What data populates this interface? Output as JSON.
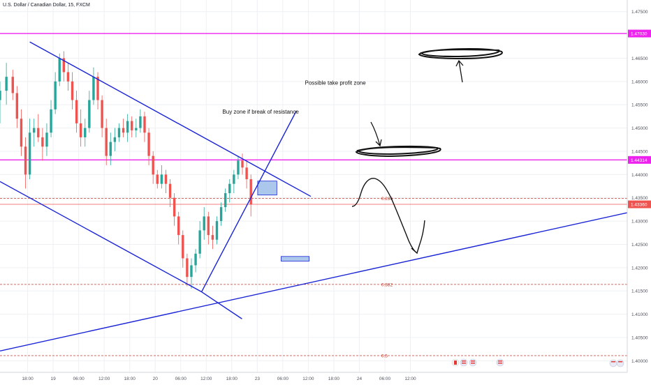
{
  "header": {
    "symbol_title": "U.S. Dollar / Canadian Dollar, 15, FXCM"
  },
  "colors": {
    "background": "#ffffff",
    "grid": "#eef0f3",
    "candle_up": "#26a69a",
    "candle_down": "#ef5350",
    "trendline": "#1a24d6",
    "level": "#ee22ee",
    "fib": "#c0392b",
    "price_line": "#ef5350",
    "zone_fill": "#8fb5e6",
    "zone_stroke": "#1a24d6",
    "axis_text": "#50535e",
    "annotation_ink": "#111111"
  },
  "chart_data": {
    "type": "candlestick",
    "y_axis": {
      "range": [
        1.3975,
        1.4775
      ],
      "tick_labels": [
        "1.47500",
        "1.46500",
        "1.46000",
        "1.45500",
        "1.45000",
        "1.44500",
        "1.44000",
        "1.43500",
        "1.43000",
        "1.42500",
        "1.42000",
        "1.41500",
        "1.41000",
        "1.40500",
        "1.40000"
      ],
      "tick_values": [
        1.475,
        1.465,
        1.46,
        1.455,
        1.45,
        1.445,
        1.44,
        1.435,
        1.43,
        1.425,
        1.42,
        1.415,
        1.41,
        1.405,
        1.4
      ]
    },
    "x_axis": {
      "range_hours": [
        -6.5,
        141
      ],
      "tick_labels": [
        "18:00",
        "19",
        "06:00",
        "12:00",
        "18:00",
        "20",
        "06:00",
        "12:00",
        "18:00",
        "23",
        "06:00",
        "12:00",
        "18:00",
        "24",
        "06:00",
        "12:00"
      ],
      "tick_hours": [
        0,
        6,
        12,
        18,
        24,
        30,
        36,
        42,
        48,
        54,
        60,
        66,
        72,
        78,
        84,
        90
      ]
    },
    "price_badges": [
      {
        "label": "1.47030",
        "value": 1.4703,
        "color": "#ee22ee"
      },
      {
        "label": "1.44314",
        "value": 1.44314,
        "color": "#ee22ee"
      },
      {
        "label": "1.43360",
        "value": 1.4336,
        "color": "#ef5350"
      }
    ],
    "horizontal_levels": [
      {
        "value": 1.4703,
        "color": "#ee22ee",
        "style": "solid"
      },
      {
        "value": 1.44314,
        "color": "#ee22ee",
        "style": "solid"
      },
      {
        "value": 1.4336,
        "color": "#ef5350",
        "style": "thin"
      }
    ],
    "fib_levels": [
      {
        "label": "0.236",
        "value": 1.4349
      },
      {
        "label": "0.382",
        "value": 1.4164
      },
      {
        "label": "0.5",
        "value": 1.4011
      }
    ],
    "trendlines": [
      {
        "from": [
          -6.5,
          1.4385
        ],
        "to": [
          40.9,
          1.4148
        ]
      },
      {
        "from": [
          40.9,
          1.4148
        ],
        "to": [
          50.4,
          1.409
        ]
      },
      {
        "from": [
          0.5,
          1.4685
        ],
        "to": [
          66.6,
          1.4353
        ]
      },
      {
        "from": [
          -6.5,
          1.4021
        ],
        "to": [
          141,
          1.4318
        ]
      },
      {
        "from": [
          40.9,
          1.4148
        ],
        "to": [
          63.2,
          1.4537
        ]
      }
    ],
    "zones": [
      {
        "name": "buy-zone",
        "x": [
          54.1,
          58.6
        ],
        "y": [
          1.4356,
          1.4386
        ]
      },
      {
        "name": "target-zone",
        "x": [
          59.6,
          66.2
        ],
        "y": [
          1.4214,
          1.4224
        ]
      }
    ],
    "annotations": [
      {
        "text": "Buy zone if break of resistance",
        "x": 45.8,
        "y": 1.4531
      },
      {
        "text": "Possible take profit zone",
        "x": 65.2,
        "y": 1.4593
      }
    ],
    "candles": [
      {
        "t": -6.5,
        "o": 1.456,
        "h": 1.46,
        "l": 1.451,
        "c": 1.458
      },
      {
        "t": -5.0,
        "o": 1.458,
        "h": 1.464,
        "l": 1.455,
        "c": 1.461
      },
      {
        "t": -3.5,
        "o": 1.461,
        "h": 1.4625,
        "l": 1.456,
        "c": 1.4575
      },
      {
        "t": -2.5,
        "o": 1.4575,
        "h": 1.459,
        "l": 1.45,
        "c": 1.452
      },
      {
        "t": -1.5,
        "o": 1.452,
        "h": 1.454,
        "l": 1.444,
        "c": 1.446
      },
      {
        "t": -0.5,
        "o": 1.446,
        "h": 1.448,
        "l": 1.437,
        "c": 1.44
      },
      {
        "t": 0.5,
        "o": 1.44,
        "h": 1.452,
        "l": 1.439,
        "c": 1.449
      },
      {
        "t": 1.5,
        "o": 1.449,
        "h": 1.452,
        "l": 1.446,
        "c": 1.45
      },
      {
        "t": 2.5,
        "o": 1.45,
        "h": 1.453,
        "l": 1.447,
        "c": 1.448
      },
      {
        "t": 3.5,
        "o": 1.448,
        "h": 1.45,
        "l": 1.443,
        "c": 1.446
      },
      {
        "t": 4.5,
        "o": 1.446,
        "h": 1.451,
        "l": 1.444,
        "c": 1.449
      },
      {
        "t": 5.5,
        "o": 1.449,
        "h": 1.456,
        "l": 1.448,
        "c": 1.454
      },
      {
        "t": 6.5,
        "o": 1.454,
        "h": 1.462,
        "l": 1.453,
        "c": 1.46
      },
      {
        "t": 7.5,
        "o": 1.46,
        "h": 1.466,
        "l": 1.459,
        "c": 1.465
      },
      {
        "t": 8.5,
        "o": 1.465,
        "h": 1.4665,
        "l": 1.46,
        "c": 1.462
      },
      {
        "t": 9.5,
        "o": 1.462,
        "h": 1.464,
        "l": 1.458,
        "c": 1.46
      },
      {
        "t": 10.5,
        "o": 1.46,
        "h": 1.462,
        "l": 1.454,
        "c": 1.456
      },
      {
        "t": 11.5,
        "o": 1.456,
        "h": 1.458,
        "l": 1.449,
        "c": 1.451
      },
      {
        "t": 12.5,
        "o": 1.451,
        "h": 1.454,
        "l": 1.446,
        "c": 1.448
      },
      {
        "t": 13.5,
        "o": 1.448,
        "h": 1.452,
        "l": 1.446,
        "c": 1.45
      },
      {
        "t": 14.5,
        "o": 1.45,
        "h": 1.458,
        "l": 1.449,
        "c": 1.456
      },
      {
        "t": 15.5,
        "o": 1.456,
        "h": 1.463,
        "l": 1.455,
        "c": 1.461
      },
      {
        "t": 16.5,
        "o": 1.461,
        "h": 1.462,
        "l": 1.454,
        "c": 1.456
      },
      {
        "t": 17.5,
        "o": 1.456,
        "h": 1.457,
        "l": 1.448,
        "c": 1.45
      },
      {
        "t": 18.5,
        "o": 1.45,
        "h": 1.452,
        "l": 1.442,
        "c": 1.444
      },
      {
        "t": 19.5,
        "o": 1.444,
        "h": 1.449,
        "l": 1.442,
        "c": 1.447
      },
      {
        "t": 20.5,
        "o": 1.447,
        "h": 1.45,
        "l": 1.445,
        "c": 1.448
      },
      {
        "t": 21.5,
        "o": 1.448,
        "h": 1.451,
        "l": 1.447,
        "c": 1.45
      },
      {
        "t": 22.5,
        "o": 1.45,
        "h": 1.452,
        "l": 1.448,
        "c": 1.449
      },
      {
        "t": 23.5,
        "o": 1.449,
        "h": 1.453,
        "l": 1.447,
        "c": 1.4515
      },
      {
        "t": 24.5,
        "o": 1.4515,
        "h": 1.4525,
        "l": 1.448,
        "c": 1.4495
      },
      {
        "t": 25.5,
        "o": 1.4495,
        "h": 1.452,
        "l": 1.448,
        "c": 1.45
      },
      {
        "t": 26.5,
        "o": 1.45,
        "h": 1.454,
        "l": 1.449,
        "c": 1.4525
      },
      {
        "t": 27.5,
        "o": 1.4525,
        "h": 1.4535,
        "l": 1.447,
        "c": 1.449
      },
      {
        "t": 28.5,
        "o": 1.449,
        "h": 1.45,
        "l": 1.442,
        "c": 1.444
      },
      {
        "t": 29.5,
        "o": 1.444,
        "h": 1.445,
        "l": 1.438,
        "c": 1.44
      },
      {
        "t": 30.5,
        "o": 1.44,
        "h": 1.441,
        "l": 1.437,
        "c": 1.438
      },
      {
        "t": 31.5,
        "o": 1.438,
        "h": 1.442,
        "l": 1.437,
        "c": 1.44
      },
      {
        "t": 32.5,
        "o": 1.44,
        "h": 1.441,
        "l": 1.436,
        "c": 1.438
      },
      {
        "t": 33.5,
        "o": 1.438,
        "h": 1.439,
        "l": 1.433,
        "c": 1.435
      },
      {
        "t": 34.5,
        "o": 1.435,
        "h": 1.436,
        "l": 1.429,
        "c": 1.431
      },
      {
        "t": 35.5,
        "o": 1.431,
        "h": 1.432,
        "l": 1.425,
        "c": 1.427
      },
      {
        "t": 36.5,
        "o": 1.427,
        "h": 1.428,
        "l": 1.42,
        "c": 1.422
      },
      {
        "t": 37.5,
        "o": 1.422,
        "h": 1.423,
        "l": 1.416,
        "c": 1.418
      },
      {
        "t": 38.5,
        "o": 1.418,
        "h": 1.422,
        "l": 1.4155,
        "c": 1.4205
      },
      {
        "t": 39.5,
        "o": 1.4205,
        "h": 1.424,
        "l": 1.419,
        "c": 1.423
      },
      {
        "t": 40.5,
        "o": 1.423,
        "h": 1.43,
        "l": 1.422,
        "c": 1.428
      },
      {
        "t": 41.5,
        "o": 1.428,
        "h": 1.433,
        "l": 1.426,
        "c": 1.431
      },
      {
        "t": 42.5,
        "o": 1.431,
        "h": 1.432,
        "l": 1.425,
        "c": 1.427
      },
      {
        "t": 43.5,
        "o": 1.427,
        "h": 1.429,
        "l": 1.424,
        "c": 1.426
      },
      {
        "t": 44.5,
        "o": 1.426,
        "h": 1.431,
        "l": 1.425,
        "c": 1.43
      },
      {
        "t": 45.5,
        "o": 1.43,
        "h": 1.434,
        "l": 1.429,
        "c": 1.433
      },
      {
        "t": 46.5,
        "o": 1.433,
        "h": 1.437,
        "l": 1.432,
        "c": 1.436
      },
      {
        "t": 47.5,
        "o": 1.436,
        "h": 1.439,
        "l": 1.434,
        "c": 1.438
      },
      {
        "t": 48.5,
        "o": 1.438,
        "h": 1.441,
        "l": 1.436,
        "c": 1.44
      },
      {
        "t": 49.5,
        "o": 1.44,
        "h": 1.444,
        "l": 1.439,
        "c": 1.443
      },
      {
        "t": 50.5,
        "o": 1.443,
        "h": 1.4445,
        "l": 1.44,
        "c": 1.4415
      },
      {
        "t": 51.5,
        "o": 1.4415,
        "h": 1.443,
        "l": 1.437,
        "c": 1.439
      },
      {
        "t": 52.5,
        "o": 1.439,
        "h": 1.44,
        "l": 1.431,
        "c": 1.4336
      }
    ]
  }
}
